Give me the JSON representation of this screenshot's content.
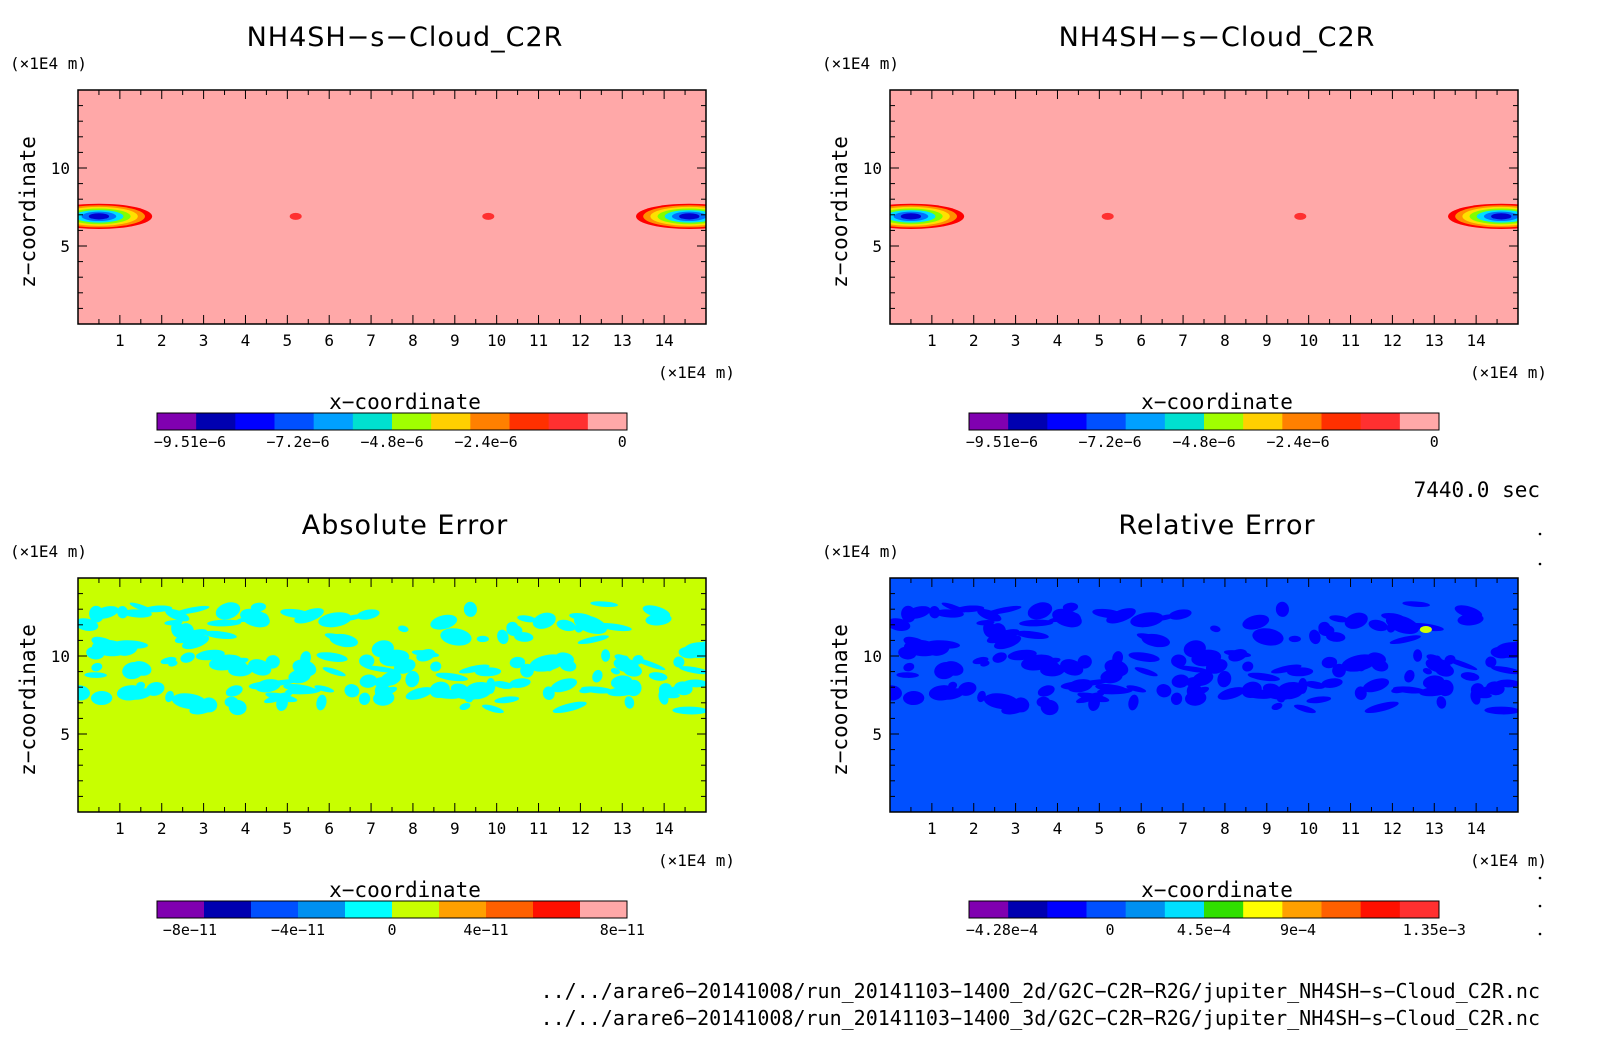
{
  "chart_data": [
    {
      "type": "heatmap",
      "title": "NH4SH−s−Cloud_C2R",
      "xlabel": "x−coordinate",
      "ylabel": "z−coordinate",
      "x_unit": "(×1E4 m)",
      "y_unit": "(×1E4 m)",
      "xticks": [
        "1",
        "2",
        "3",
        "4",
        "5",
        "6",
        "7",
        "8",
        "9",
        "10",
        "11",
        "12",
        "13",
        "14"
      ],
      "yticks": [
        "5",
        "10"
      ],
      "xlim": [
        0,
        15
      ],
      "ylim": [
        0,
        15
      ],
      "background_color": "#ffa8a8",
      "colorbar": {
        "colors": [
          "#8000b0",
          "#0000b0",
          "#0000ff",
          "#0050ff",
          "#00a0ff",
          "#00e0d0",
          "#a0ff00",
          "#ffd000",
          "#ff8000",
          "#ff3000",
          "#ff3030",
          "#ffa8a8"
        ],
        "labels": [
          "−9.51e−6",
          "−7.2e−6",
          "−4.8e−6",
          "−2.4e−6",
          "0"
        ]
      },
      "features": [
        {
          "kind": "blob",
          "x": 0.5,
          "y": 6.9,
          "w": 1.2,
          "h": 1.3,
          "colors": [
            "#ff0000",
            "#ff9000",
            "#ffe000",
            "#80ff00",
            "#00e0ff",
            "#0070ff",
            "#0000d0"
          ]
        },
        {
          "kind": "blob",
          "x": 14.6,
          "y": 6.9,
          "w": 1.2,
          "h": 1.3,
          "colors": [
            "#ff0000",
            "#ff9000",
            "#ffe000",
            "#80ff00",
            "#00e0ff",
            "#0070ff",
            "#0000d0"
          ]
        },
        {
          "kind": "dot",
          "x": 5.2,
          "y": 6.9,
          "color": "#ff3030"
        },
        {
          "kind": "dot",
          "x": 9.8,
          "y": 6.9,
          "color": "#ff3030"
        }
      ]
    },
    {
      "type": "heatmap",
      "title": "NH4SH−s−Cloud_C2R",
      "xlabel": "x−coordinate",
      "ylabel": "z−coordinate",
      "x_unit": "(×1E4 m)",
      "y_unit": "(×1E4 m)",
      "xticks": [
        "1",
        "2",
        "3",
        "4",
        "5",
        "6",
        "7",
        "8",
        "9",
        "10",
        "11",
        "12",
        "13",
        "14"
      ],
      "yticks": [
        "5",
        "10"
      ],
      "xlim": [
        0,
        15
      ],
      "ylim": [
        0,
        15
      ],
      "background_color": "#ffa8a8",
      "colorbar": {
        "colors": [
          "#8000b0",
          "#0000b0",
          "#0000ff",
          "#0050ff",
          "#00a0ff",
          "#00e0d0",
          "#a0ff00",
          "#ffd000",
          "#ff8000",
          "#ff3000",
          "#ff3030",
          "#ffa8a8"
        ],
        "labels": [
          "−9.51e−6",
          "−7.2e−6",
          "−4.8e−6",
          "−2.4e−6",
          "0"
        ]
      },
      "features": [
        {
          "kind": "blob",
          "x": 0.5,
          "y": 6.9,
          "w": 1.2,
          "h": 1.3,
          "colors": [
            "#ff0000",
            "#ff9000",
            "#ffe000",
            "#80ff00",
            "#00e0ff",
            "#0070ff",
            "#0000d0"
          ]
        },
        {
          "kind": "blob",
          "x": 14.6,
          "y": 6.9,
          "w": 1.2,
          "h": 1.3,
          "colors": [
            "#ff0000",
            "#ff9000",
            "#ffe000",
            "#80ff00",
            "#00e0ff",
            "#0070ff",
            "#0000d0"
          ]
        },
        {
          "kind": "dot",
          "x": 5.2,
          "y": 6.9,
          "color": "#ff3030"
        },
        {
          "kind": "dot",
          "x": 9.8,
          "y": 6.9,
          "color": "#ff3030"
        }
      ]
    },
    {
      "type": "heatmap",
      "title": "Absolute Error",
      "xlabel": "x−coordinate",
      "ylabel": "z−coordinate",
      "x_unit": "(×1E4 m)",
      "y_unit": "(×1E4 m)",
      "xticks": [
        "1",
        "2",
        "3",
        "4",
        "5",
        "6",
        "7",
        "8",
        "9",
        "10",
        "11",
        "12",
        "13",
        "14"
      ],
      "yticks": [
        "5",
        "10"
      ],
      "xlim": [
        0,
        15
      ],
      "ylim": [
        0,
        15
      ],
      "background_color": "#c8ff00",
      "colorbar": {
        "colors": [
          "#8000b0",
          "#0000b0",
          "#0050ff",
          "#0090f0",
          "#00ffff",
          "#c8ff00",
          "#ffa000",
          "#ff6000",
          "#ff1000",
          "#ffa8a8"
        ],
        "labels": [
          "−8e−11",
          "−4e−11",
          "0",
          "4e−11",
          "8e−11"
        ]
      },
      "features": [
        {
          "kind": "patches",
          "color": "#00ffff",
          "zmin": 6.5,
          "zmax": 13.5,
          "count": 150,
          "seed": 7
        },
        {
          "kind": "patches",
          "color": "#00ffff",
          "zmin": 6.8,
          "zmax": 8.2,
          "count": 18,
          "seed": 21
        }
      ]
    },
    {
      "type": "heatmap",
      "title": "Relative Error",
      "xlabel": "x−coordinate",
      "ylabel": "z−coordinate",
      "x_unit": "(×1E4 m)",
      "y_unit": "(×1E4 m)",
      "xticks": [
        "1",
        "2",
        "3",
        "4",
        "5",
        "6",
        "7",
        "8",
        "9",
        "10",
        "11",
        "12",
        "13",
        "14"
      ],
      "yticks": [
        "5",
        "10"
      ],
      "xlim": [
        0,
        15
      ],
      "ylim": [
        0,
        15
      ],
      "background_color": "#0050ff",
      "colorbar": {
        "colors": [
          "#8000b0",
          "#0000b0",
          "#0000ff",
          "#0050ff",
          "#0090f0",
          "#00e0ff",
          "#30e000",
          "#ffff00",
          "#ffa000",
          "#ff6000",
          "#ff1000",
          "#ff3030"
        ],
        "labels": [
          "−4.28e−4",
          "0",
          "4.5e−4",
          "9e−4",
          "1.35e−3"
        ]
      },
      "features": [
        {
          "kind": "patches",
          "color": "#0000ff",
          "zmin": 6.5,
          "zmax": 13.5,
          "count": 150,
          "seed": 7
        },
        {
          "kind": "patches",
          "color": "#0000ff",
          "zmin": 6.8,
          "zmax": 8.2,
          "count": 18,
          "seed": 21
        },
        {
          "kind": "dot",
          "x": 12.8,
          "y": 11.7,
          "color": "#d0ff00"
        }
      ]
    }
  ],
  "time_label": "7440.0 sec",
  "footer": {
    "line1": "../../arare6−20141008/run_20141103−1400_2d/G2C−C2R−R2G/jupiter_NH4SH−s−Cloud_C2R.nc",
    "line2": "../../arare6−20141008/run_20141103−1400_3d/G2C−C2R−R2G/jupiter_NH4SH−s−Cloud_C2R.nc"
  }
}
